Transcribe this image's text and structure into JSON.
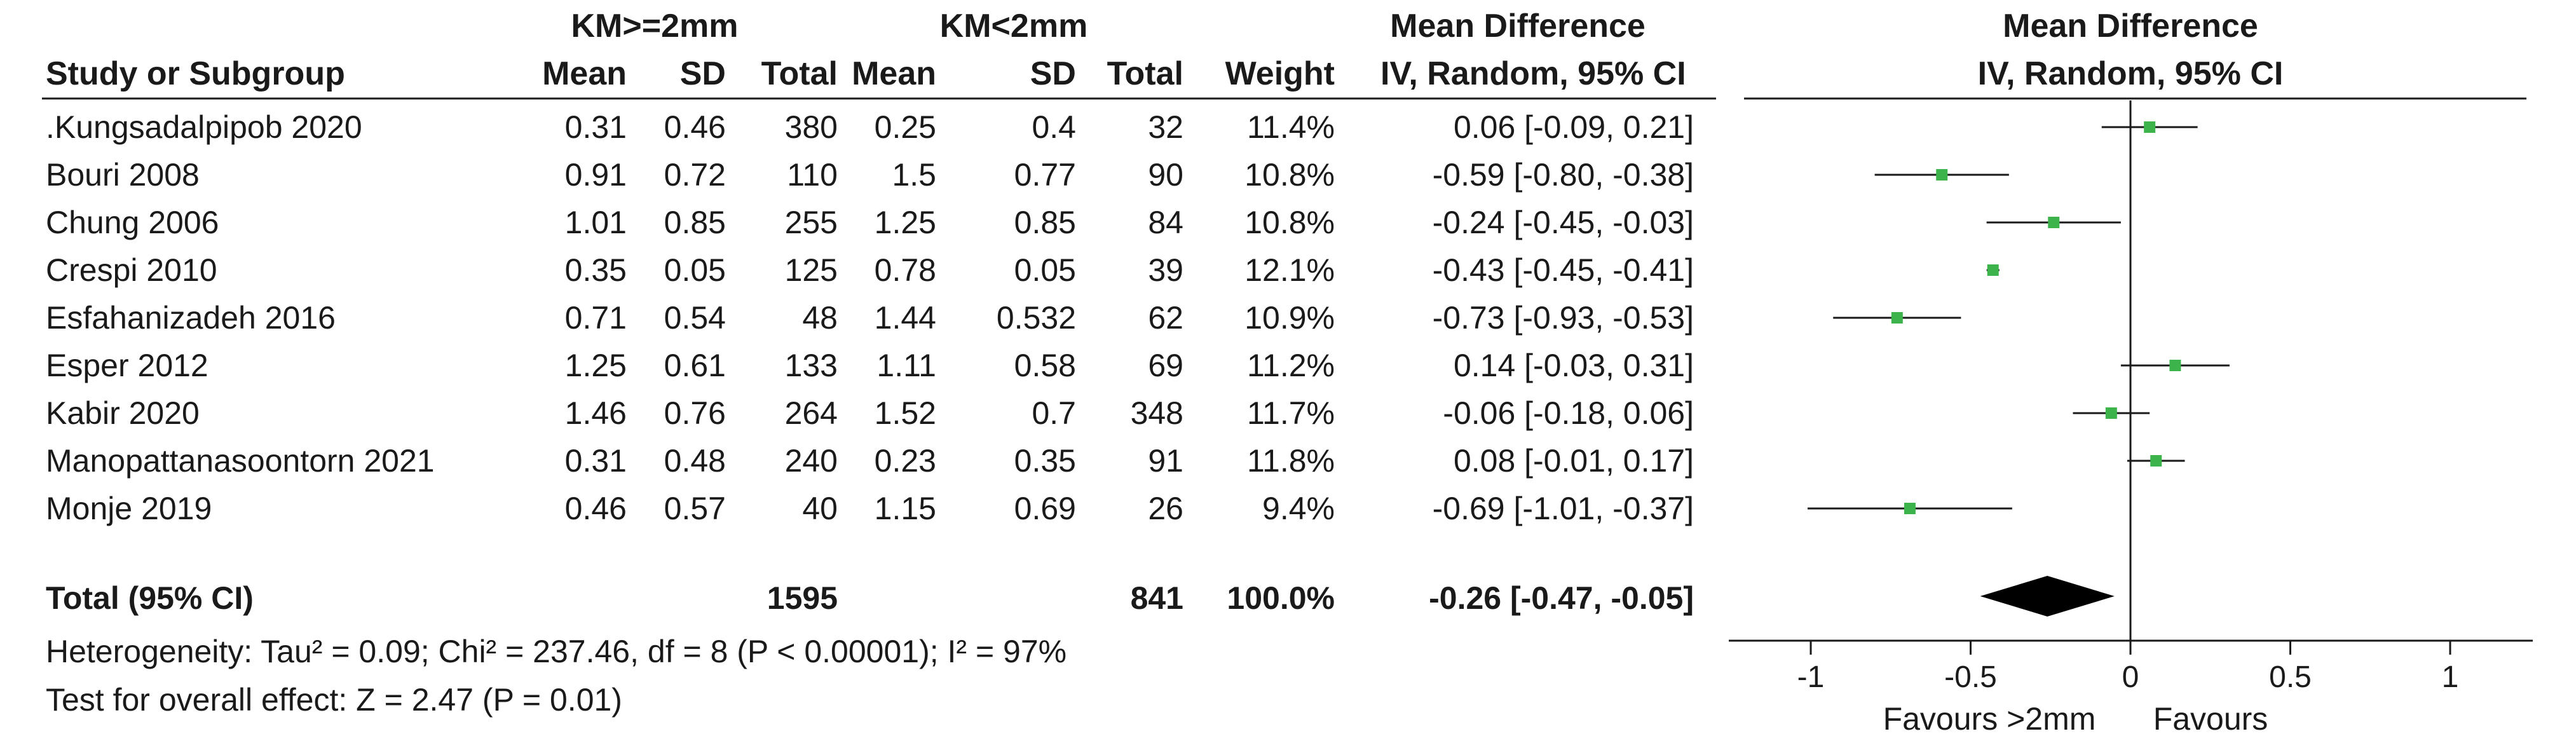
{
  "chart_data": {
    "type": "forest",
    "title": "",
    "group_headers": {
      "experimental": "KM>=2mm",
      "control": "KM<2mm",
      "effect_table": "Mean Difference",
      "effect_plot": "Mean Difference"
    },
    "column_headers": {
      "study": "Study or Subgroup",
      "e_mean": "Mean",
      "e_sd": "SD",
      "e_total": "Total",
      "c_mean": "Mean",
      "c_sd": "SD",
      "c_total": "Total",
      "weight": "Weight",
      "effect": "IV, Random, 95% CI",
      "plot_effect": "IV, Random, 95% CI"
    },
    "studies": [
      {
        "name": ".Kungsadalpipob 2020",
        "e_mean": "0.31",
        "e_sd": "0.46",
        "e_total": "380",
        "c_mean": "0.25",
        "c_sd": "0.4",
        "c_total": "32",
        "weight": "11.4%",
        "ci_text": "0.06 [-0.09, 0.21]",
        "md": 0.06,
        "lo": -0.09,
        "hi": 0.21
      },
      {
        "name": "Bouri 2008",
        "e_mean": "0.91",
        "e_sd": "0.72",
        "e_total": "110",
        "c_mean": "1.5",
        "c_sd": "0.77",
        "c_total": "90",
        "weight": "10.8%",
        "ci_text": "-0.59 [-0.80, -0.38]",
        "md": -0.59,
        "lo": -0.8,
        "hi": -0.38
      },
      {
        "name": "Chung 2006",
        "e_mean": "1.01",
        "e_sd": "0.85",
        "e_total": "255",
        "c_mean": "1.25",
        "c_sd": "0.85",
        "c_total": "84",
        "weight": "10.8%",
        "ci_text": "-0.24 [-0.45, -0.03]",
        "md": -0.24,
        "lo": -0.45,
        "hi": -0.03
      },
      {
        "name": "Crespi 2010",
        "e_mean": "0.35",
        "e_sd": "0.05",
        "e_total": "125",
        "c_mean": "0.78",
        "c_sd": "0.05",
        "c_total": "39",
        "weight": "12.1%",
        "ci_text": "-0.43 [-0.45, -0.41]",
        "md": -0.43,
        "lo": -0.45,
        "hi": -0.41
      },
      {
        "name": "Esfahanizadeh 2016",
        "e_mean": "0.71",
        "e_sd": "0.54",
        "e_total": "48",
        "c_mean": "1.44",
        "c_sd": "0.532",
        "c_total": "62",
        "weight": "10.9%",
        "ci_text": "-0.73 [-0.93, -0.53]",
        "md": -0.73,
        "lo": -0.93,
        "hi": -0.53
      },
      {
        "name": "Esper 2012",
        "e_mean": "1.25",
        "e_sd": "0.61",
        "e_total": "133",
        "c_mean": "1.11",
        "c_sd": "0.58",
        "c_total": "69",
        "weight": "11.2%",
        "ci_text": "0.14 [-0.03, 0.31]",
        "md": 0.14,
        "lo": -0.03,
        "hi": 0.31
      },
      {
        "name": "Kabir 2020",
        "e_mean": "1.46",
        "e_sd": "0.76",
        "e_total": "264",
        "c_mean": "1.52",
        "c_sd": "0.7",
        "c_total": "348",
        "weight": "11.7%",
        "ci_text": "-0.06 [-0.18, 0.06]",
        "md": -0.06,
        "lo": -0.18,
        "hi": 0.06
      },
      {
        "name": "Manopattanasoontorn 2021",
        "e_mean": "0.31",
        "e_sd": "0.48",
        "e_total": "240",
        "c_mean": "0.23",
        "c_sd": "0.35",
        "c_total": "91",
        "weight": "11.8%",
        "ci_text": "0.08 [-0.01, 0.17]",
        "md": 0.08,
        "lo": -0.01,
        "hi": 0.17
      },
      {
        "name": "Monje 2019",
        "e_mean": "0.46",
        "e_sd": "0.57",
        "e_total": "40",
        "c_mean": "1.15",
        "c_sd": "0.69",
        "c_total": "26",
        "weight": "9.4%",
        "ci_text": "-0.69 [-1.01, -0.37]",
        "md": -0.69,
        "lo": -1.01,
        "hi": -0.37
      }
    ],
    "total": {
      "label": "Total (95% CI)",
      "e_total": "1595",
      "c_total": "841",
      "weight": "100.0%",
      "ci_text": "-0.26 [-0.47, -0.05]",
      "md": -0.26,
      "lo": -0.47,
      "hi": -0.05
    },
    "heterogeneity": "Heterogeneity: Tau² = 0.09; Chi² = 237.46, df = 8 (P < 0.00001); I² = 97%",
    "overall_effect": "Test for overall effect: Z = 2.47 (P = 0.01)",
    "x_axis": {
      "range": [
        -1,
        1
      ],
      "ticks": [
        -1,
        -0.5,
        0,
        0.5,
        1
      ],
      "tick_labels": [
        "-1",
        "-0.5",
        "0",
        "0.5",
        "1"
      ]
    },
    "favours_left": "Favours >2mm",
    "favours_right": "Favours",
    "colors": {
      "marker": "#3cb44b",
      "diamond": "#000000",
      "line": "#1a1a1a"
    }
  }
}
